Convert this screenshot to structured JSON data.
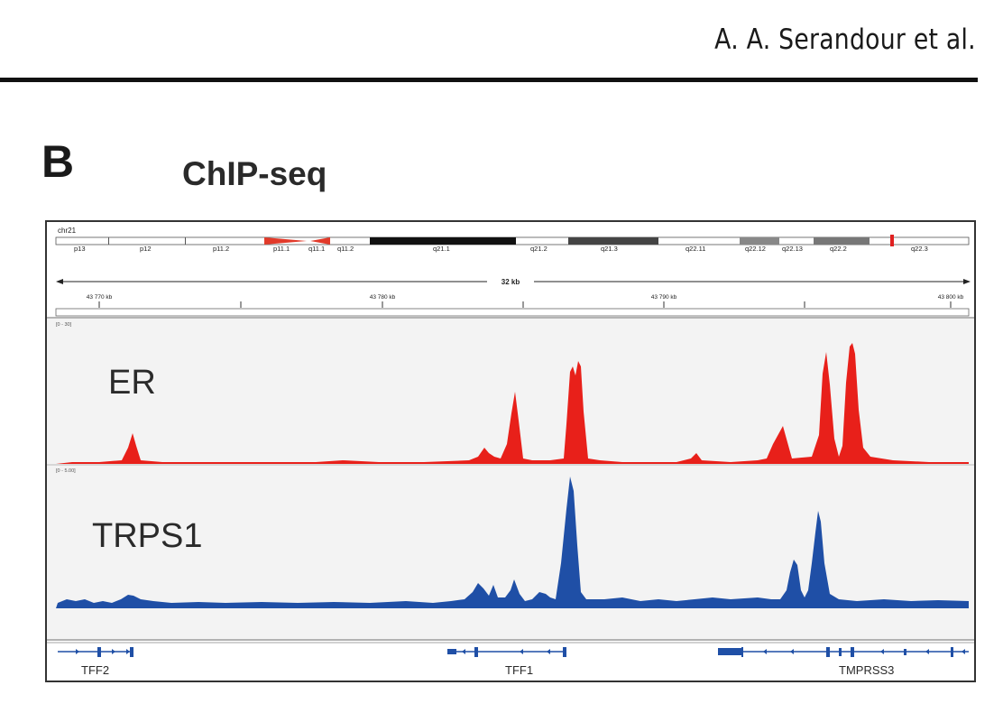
{
  "header": {
    "author": "A. A. Serandour et al."
  },
  "figure": {
    "panel_letter": "B",
    "panel_title": "ChIP-seq",
    "chromosome": "chr21",
    "bands": [
      "p13",
      "p12",
      "p11.2",
      "p11.1",
      "q11.1",
      "q11.2",
      "q21.1",
      "q21.2",
      "q21.3",
      "q22.11",
      "q22.12",
      "q22.13",
      "q22.2",
      "q22.3"
    ],
    "span_label": "32 kb",
    "coord_ticks": [
      "43 770 kb",
      "43 780 kb",
      "43 790 kb",
      "43 800 kb"
    ],
    "tracks": [
      {
        "label": "ER",
        "range": "[0 - 30]",
        "color": "#e8201a"
      },
      {
        "label": "TRPS1",
        "range": "[0 - 5.00]",
        "color": "#1f4fa6"
      }
    ],
    "genes": [
      "TFF2",
      "TFF1",
      "TMPRSS3"
    ]
  }
}
